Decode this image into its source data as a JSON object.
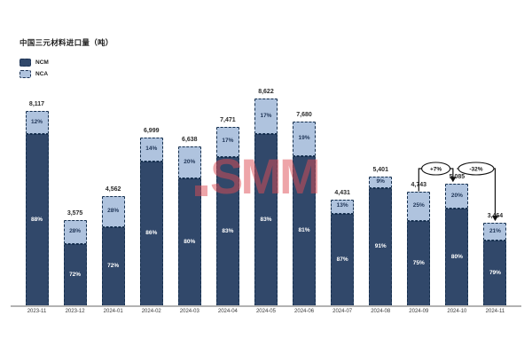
{
  "chart_data": {
    "type": "bar",
    "stacked": true,
    "title": "中国三元材料进口量（吨）",
    "categories": [
      "2023-11",
      "2023-12",
      "2024-01",
      "2024-02",
      "2024-03",
      "2024-04",
      "2024-05",
      "2024-06",
      "2024-07",
      "2024-08",
      "2024-09",
      "2024-10",
      "2024-11"
    ],
    "totals": [
      8117,
      3575,
      4562,
      6999,
      6638,
      7471,
      8622,
      7680,
      4431,
      5401,
      4743,
      5085,
      3464
    ],
    "total_labels": [
      "8,117",
      "3,575",
      "4,562",
      "6,999",
      "6,638",
      "7,471",
      "8,622",
      "7,680",
      "4,431",
      "5,401",
      "4,743",
      "5,085",
      "3,464"
    ],
    "series": [
      {
        "name": "NCM",
        "color": "#31486a",
        "label_color": "#ffffff",
        "pct": [
          88,
          72,
          72,
          86,
          80,
          83,
          83,
          81,
          87,
          91,
          75,
          80,
          79
        ]
      },
      {
        "name": "NCA",
        "color": "#afc3de",
        "label_color": "#1f3557",
        "pct": [
          12,
          28,
          28,
          14,
          20,
          17,
          17,
          19,
          13,
          9,
          25,
          20,
          21
        ]
      }
    ],
    "ylim": [
      0,
      9000
    ],
    "grid": false,
    "legend_position": "top-left",
    "annotations": [
      {
        "label": "+7%",
        "from": "2024-09",
        "to": "2024-10"
      },
      {
        "label": "-32%",
        "from": "2024-10",
        "to": "2024-11"
      }
    ],
    "watermark": "SMM"
  }
}
